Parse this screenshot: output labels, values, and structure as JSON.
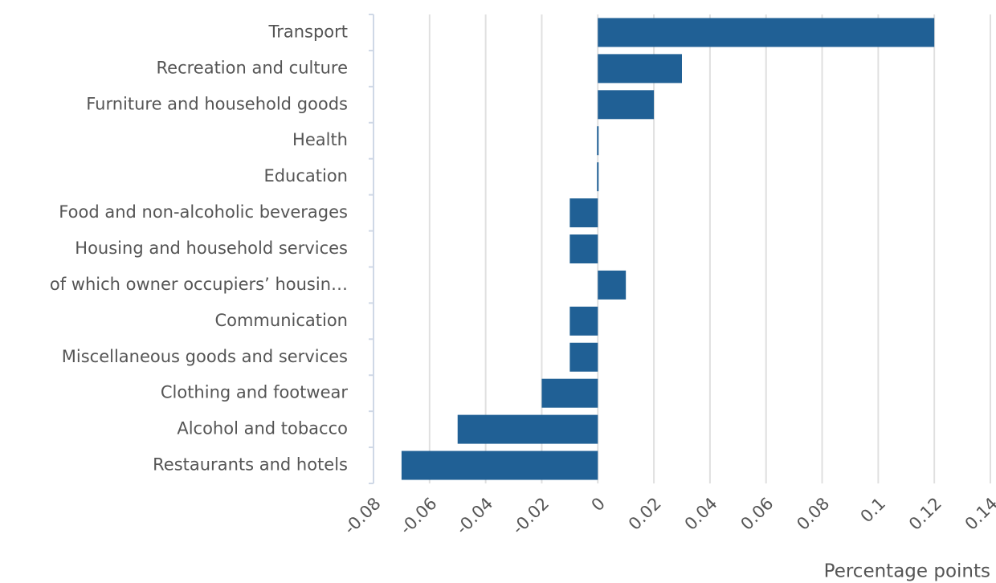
{
  "chart_data": {
    "type": "bar",
    "orientation": "horizontal",
    "categories": [
      "Transport",
      "Recreation and culture",
      "Furniture and household goods",
      "Health",
      "Education",
      "Food and non-alcoholic beverages",
      "Housing and household services",
      "of which owner occupiers’ housin…",
      "Communication",
      "Miscellaneous goods and services",
      "Clothing and footwear",
      "Alcohol and tobacco",
      "Restaurants and hotels"
    ],
    "values": [
      0.12,
      0.03,
      0.02,
      0,
      0,
      -0.01,
      -0.01,
      0.01,
      -0.01,
      -0.01,
      -0.02,
      -0.05,
      -0.07
    ],
    "color": "#206095",
    "xlim": [
      -0.08,
      0.14
    ],
    "xticks": [
      -0.08,
      -0.06,
      -0.04,
      -0.02,
      0,
      0.02,
      0.04,
      0.06,
      0.08,
      0.1,
      0.12,
      0.14
    ],
    "xlabel": "Percentage points",
    "grid": true
  }
}
